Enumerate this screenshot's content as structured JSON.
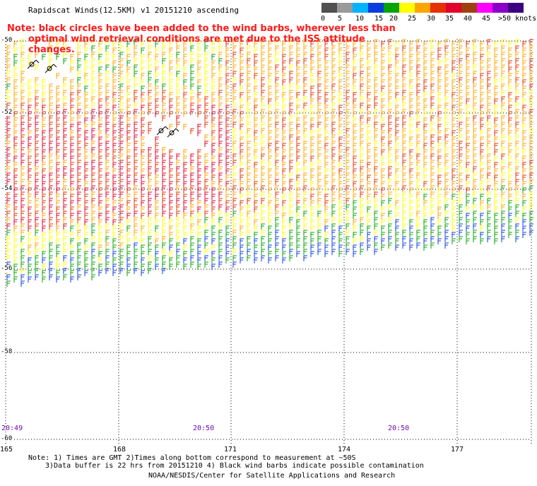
{
  "title": "Rapidscat Winds(12.5KM) v1 20151210 ascending",
  "note": {
    "line1": "Note: black circles have been added to the wind barbs, wherever less than",
    "line2": "optimal wind retrieval conditions are met due to the ISS attitude changes."
  },
  "legend": {
    "labels": [
      "0",
      "5",
      "10",
      "15",
      "20",
      "25",
      "30",
      "35",
      "40",
      "45",
      ">50 knots"
    ],
    "colors": [
      "#505050",
      "#9a9a9a",
      "#00b4ff",
      "#0b3ce0",
      "#05a305",
      "#ffff00",
      "#ffa500",
      "#e63000",
      "#e0002a",
      "#a04010",
      "#ff00ff",
      "#8a00c8",
      "#3a0080"
    ]
  },
  "lat_labels": [
    "-50",
    "-52",
    "-54",
    "-56",
    "-58",
    "-60"
  ],
  "lon_labels": [
    "165",
    "168",
    "171",
    "174",
    "177"
  ],
  "time_labels": [
    "20:49",
    "20:50",
    "20:50"
  ],
  "footnote": {
    "line1": "Note: 1) Times are GMT 2)Times along bottom correspond to measurement at ~50S",
    "line2": "3)Data buffer is 22 hrs from 20151210 4) Black wind barbs indicate possible contamination"
  },
  "credit": "NOAA/NESDIS/Center for Satellite Applications and Research"
}
